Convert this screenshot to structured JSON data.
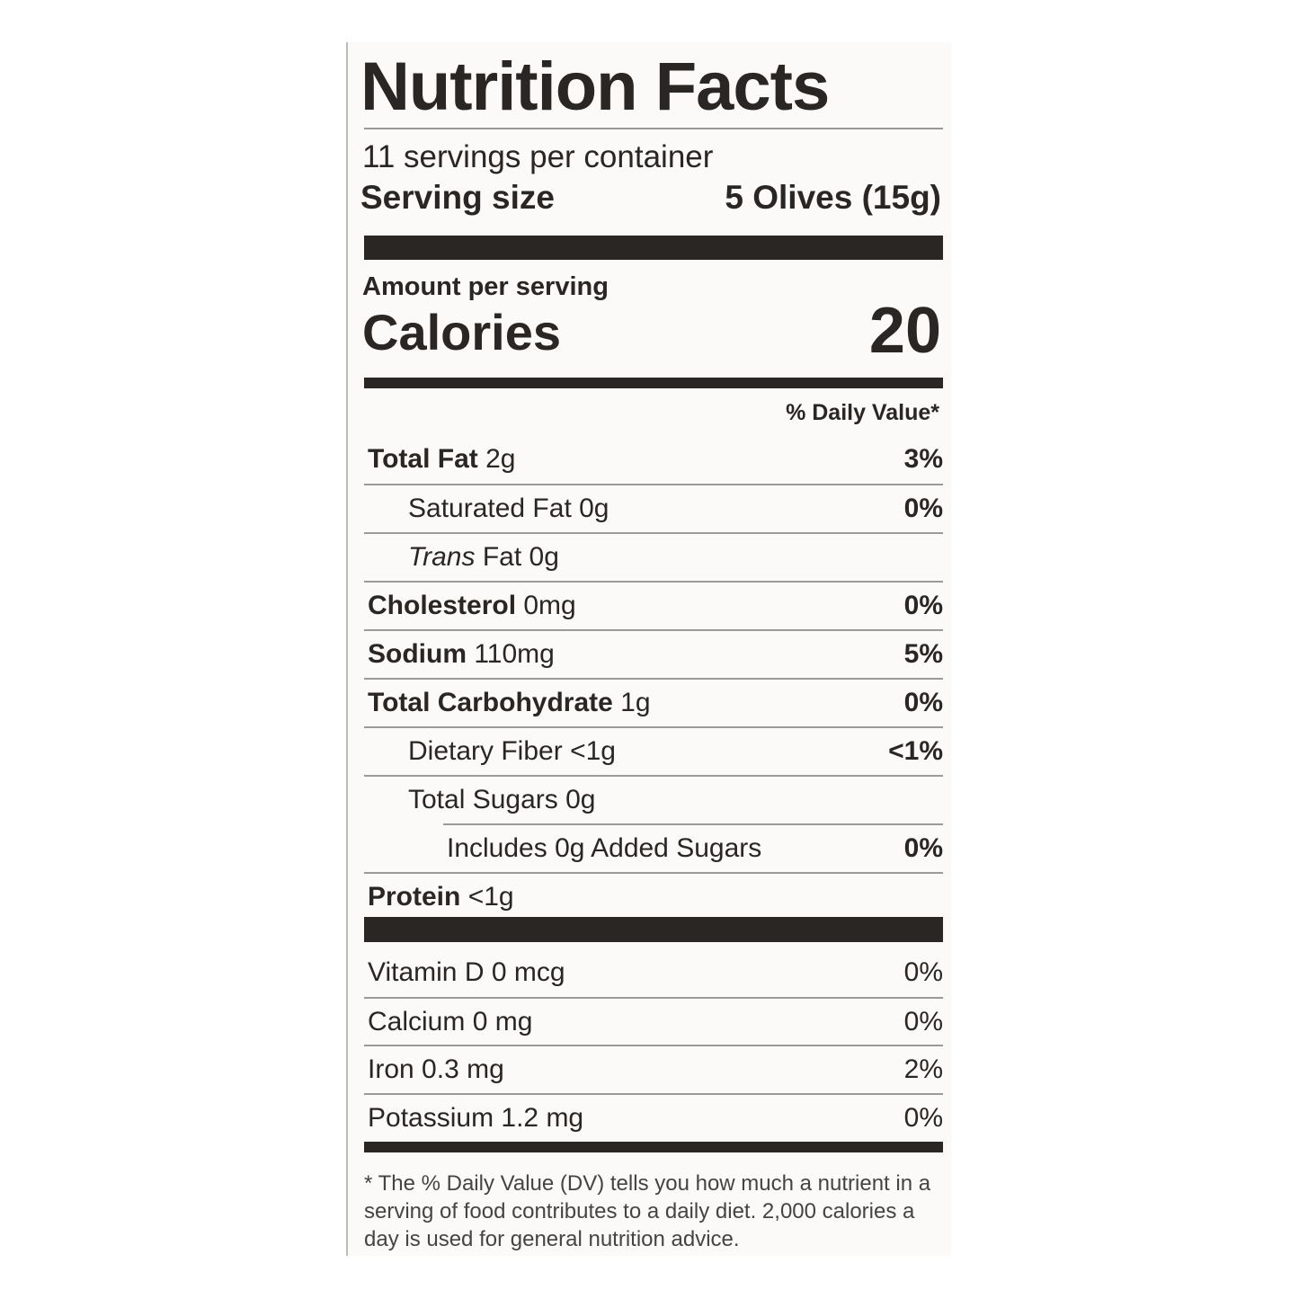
{
  "title": "Nutrition Facts",
  "servings": "11 servings per container",
  "serving_size": {
    "label": "Serving size",
    "value": "5 Olives (15g)"
  },
  "amount_per_serving": "Amount per serving",
  "calories": {
    "label": "Calories",
    "value": "20"
  },
  "dv_header": "% Daily Value*",
  "nutrients": [
    {
      "name": "Total Fat",
      "amount": "2g",
      "dv": "3%",
      "sub": [
        {
          "name": "Saturated Fat",
          "amount": "0g",
          "dv": "0%"
        },
        {
          "prefix": "Trans",
          "name": "Fat",
          "amount": "0g"
        }
      ]
    },
    {
      "name": "Cholesterol",
      "amount": "0mg",
      "dv": "0%"
    },
    {
      "name": "Sodium",
      "amount": "110mg",
      "dv": "5%"
    },
    {
      "name": "Total Carbohydrate",
      "amount": "1g",
      "dv": "0%",
      "sub": [
        {
          "name": "Dietary Fiber",
          "amount": "<1g",
          "dv": "<1%"
        },
        {
          "name": "Total Sugars",
          "amount": "0g",
          "sub": [
            {
              "name": "Includes 0g Added Sugars",
              "dv": "0%"
            }
          ]
        }
      ]
    },
    {
      "name": "Protein",
      "amount": "<1g"
    }
  ],
  "vitamins": [
    {
      "name": "Vitamin D",
      "amount": "0 mcg",
      "dv": "0%"
    },
    {
      "name": "Calcium",
      "amount": "0 mg",
      "dv": "0%"
    },
    {
      "name": "Iron",
      "amount": "0.3 mg",
      "dv": "2%"
    },
    {
      "name": "Potassium",
      "amount": "1.2 mg",
      "dv": "0%"
    }
  ],
  "footnote": "The % Daily Value (DV) tells you how much a nutrient in a serving of food contributes to a daily diet. 2,000 calories a day is used for general nutrition advice."
}
